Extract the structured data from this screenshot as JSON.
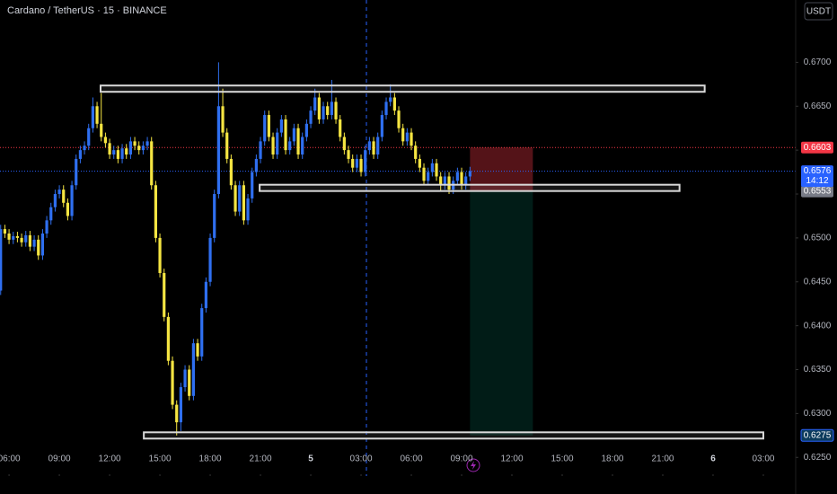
{
  "chart_data": {
    "type": "candlestick",
    "title": "Cardano / TetherUS · 15 · BINANCE",
    "currency": "USDT",
    "up_color": "#2f6ff0",
    "down_color": "#f5e542",
    "grid": false,
    "xlim": [
      5.46,
      52.93
    ],
    "ylim": [
      0.6239,
      0.6771
    ],
    "xticks": [
      {
        "value": 6,
        "label": "06:00"
      },
      {
        "value": 9,
        "label": "09:00"
      },
      {
        "value": 12,
        "label": "12:00"
      },
      {
        "value": 15,
        "label": "15:00"
      },
      {
        "value": 18,
        "label": "18:00"
      },
      {
        "value": 21,
        "label": "21:00"
      },
      {
        "value": 24,
        "label": "5"
      },
      {
        "value": 27,
        "label": "03:00"
      },
      {
        "value": 30,
        "label": "06:00"
      },
      {
        "value": 33,
        "label": "09:00"
      },
      {
        "value": 36,
        "label": "12:00"
      },
      {
        "value": 39,
        "label": "15:00"
      },
      {
        "value": 42,
        "label": "18:00"
      },
      {
        "value": 45,
        "label": "21:00"
      },
      {
        "value": 48,
        "label": "6"
      },
      {
        "value": 51,
        "label": "03:00"
      }
    ],
    "yticks": [
      {
        "value": 0.625,
        "label": "0.6250"
      },
      {
        "value": 0.63,
        "label": "0.6300"
      },
      {
        "value": 0.635,
        "label": "0.6350"
      },
      {
        "value": 0.64,
        "label": "0.6400"
      },
      {
        "value": 0.645,
        "label": "0.6450"
      },
      {
        "value": 0.65,
        "label": "0.6500"
      },
      {
        "value": 0.655,
        "label": "0.6550"
      },
      {
        "value": 0.66,
        "label": "0.6600"
      },
      {
        "value": 0.665,
        "label": "0.6650"
      },
      {
        "value": 0.67,
        "label": "0.6700"
      }
    ],
    "x": [
      5.5,
      5.75,
      6,
      6.25,
      6.5,
      6.75,
      7,
      7.25,
      7.5,
      7.75,
      8,
      8.25,
      8.5,
      8.75,
      9,
      9.25,
      9.5,
      9.75,
      10,
      10.25,
      10.5,
      10.75,
      11,
      11.25,
      11.5,
      11.75,
      12,
      12.25,
      12.5,
      12.75,
      13,
      13.25,
      13.5,
      13.75,
      14,
      14.25,
      14.5,
      14.75,
      15,
      15.25,
      15.5,
      15.75,
      16,
      16.25,
      16.5,
      16.75,
      17,
      17.25,
      17.5,
      17.75,
      18,
      18.25,
      18.5,
      18.75,
      19,
      19.25,
      19.5,
      19.75,
      20,
      20.25,
      20.5,
      20.75,
      21,
      21.25,
      21.5,
      21.75,
      22,
      22.25,
      22.5,
      22.75,
      23,
      23.25,
      23.5,
      23.75,
      24,
      24.25,
      24.5,
      24.75,
      25,
      25.25,
      25.5,
      25.75,
      26,
      26.25,
      26.5,
      26.75,
      27,
      27.25,
      27.5,
      27.75,
      28,
      28.25,
      28.5,
      28.75,
      29,
      29.25,
      29.5,
      29.75,
      30,
      30.25,
      30.5,
      30.75,
      31,
      31.25,
      31.5,
      31.75,
      32,
      32.25,
      32.5,
      32.75,
      33,
      33.25,
      33.5
    ],
    "open": [
      0.644,
      0.651,
      0.6505,
      0.6498,
      0.6502,
      0.65,
      0.6495,
      0.6503,
      0.649,
      0.6498,
      0.648,
      0.6505,
      0.652,
      0.6535,
      0.655,
      0.6555,
      0.654,
      0.6525,
      0.656,
      0.659,
      0.66,
      0.6605,
      0.6625,
      0.665,
      0.663,
      0.6615,
      0.6608,
      0.6595,
      0.66,
      0.659,
      0.6602,
      0.6595,
      0.661,
      0.6605,
      0.66,
      0.6605,
      0.661,
      0.656,
      0.65,
      0.646,
      0.641,
      0.636,
      0.631,
      0.629,
      0.633,
      0.635,
      0.632,
      0.638,
      0.6365,
      0.642,
      0.645,
      0.65,
      0.655,
      0.665,
      0.662,
      0.659,
      0.656,
      0.653,
      0.656,
      0.652,
      0.6545,
      0.6575,
      0.659,
      0.661,
      0.664,
      0.6615,
      0.6595,
      0.662,
      0.6635,
      0.66,
      0.661,
      0.6625,
      0.6595,
      0.6615,
      0.663,
      0.6645,
      0.666,
      0.6635,
      0.665,
      0.664,
      0.6655,
      0.6635,
      0.6615,
      0.66,
      0.659,
      0.658,
      0.659,
      0.6575,
      0.66,
      0.661,
      0.6595,
      0.6615,
      0.664,
      0.6655,
      0.666,
      0.6645,
      0.6625,
      0.661,
      0.662,
      0.6605,
      0.659,
      0.658,
      0.6565,
      0.6575,
      0.6585,
      0.657,
      0.656,
      0.657,
      0.6555,
      0.6565,
      0.6575,
      0.656,
      0.657
    ],
    "high": [
      0.6515,
      0.6515,
      0.651,
      0.6507,
      0.6507,
      0.6505,
      0.6508,
      0.6508,
      0.6503,
      0.6503,
      0.651,
      0.6525,
      0.654,
      0.6555,
      0.656,
      0.656,
      0.6545,
      0.6565,
      0.6595,
      0.6605,
      0.661,
      0.663,
      0.666,
      0.6655,
      0.6665,
      0.662,
      0.6613,
      0.6605,
      0.6605,
      0.6607,
      0.6607,
      0.6615,
      0.6615,
      0.661,
      0.661,
      0.6615,
      0.6615,
      0.6565,
      0.6505,
      0.6465,
      0.6415,
      0.6365,
      0.6315,
      0.6335,
      0.6355,
      0.6355,
      0.6385,
      0.6385,
      0.6425,
      0.6455,
      0.6505,
      0.6555,
      0.67,
      0.667,
      0.6625,
      0.6595,
      0.6565,
      0.6565,
      0.6565,
      0.655,
      0.658,
      0.6595,
      0.6615,
      0.6645,
      0.6645,
      0.662,
      0.6625,
      0.664,
      0.664,
      0.6615,
      0.663,
      0.663,
      0.662,
      0.6635,
      0.665,
      0.667,
      0.6665,
      0.6655,
      0.6655,
      0.668,
      0.666,
      0.664,
      0.662,
      0.6605,
      0.6595,
      0.6595,
      0.6595,
      0.6605,
      0.6615,
      0.6615,
      0.662,
      0.6645,
      0.666,
      0.6675,
      0.6665,
      0.665,
      0.663,
      0.6625,
      0.6625,
      0.661,
      0.6595,
      0.6585,
      0.658,
      0.659,
      0.659,
      0.6575,
      0.6575,
      0.6575,
      0.657,
      0.658,
      0.658,
      0.6575,
      0.6581
    ],
    "low": [
      0.6435,
      0.65,
      0.6493,
      0.6493,
      0.6495,
      0.649,
      0.649,
      0.6485,
      0.6485,
      0.6475,
      0.6475,
      0.65,
      0.6515,
      0.653,
      0.6545,
      0.6535,
      0.652,
      0.652,
      0.6555,
      0.6585,
      0.6595,
      0.66,
      0.662,
      0.6625,
      0.661,
      0.6603,
      0.659,
      0.659,
      0.6585,
      0.6585,
      0.659,
      0.659,
      0.66,
      0.6595,
      0.6595,
      0.66,
      0.6555,
      0.6495,
      0.6455,
      0.6405,
      0.6355,
      0.6305,
      0.6275,
      0.628,
      0.6325,
      0.6315,
      0.6315,
      0.636,
      0.636,
      0.6415,
      0.6445,
      0.6495,
      0.6545,
      0.6615,
      0.6585,
      0.6555,
      0.6525,
      0.6525,
      0.6515,
      0.6515,
      0.654,
      0.657,
      0.6585,
      0.6605,
      0.661,
      0.659,
      0.659,
      0.6615,
      0.6595,
      0.6595,
      0.6605,
      0.659,
      0.659,
      0.661,
      0.6625,
      0.664,
      0.663,
      0.663,
      0.6635,
      0.6635,
      0.663,
      0.661,
      0.6595,
      0.6585,
      0.6575,
      0.6575,
      0.657,
      0.657,
      0.6595,
      0.659,
      0.659,
      0.661,
      0.6635,
      0.665,
      0.664,
      0.662,
      0.6605,
      0.6605,
      0.66,
      0.6585,
      0.6575,
      0.656,
      0.656,
      0.657,
      0.6565,
      0.6553,
      0.6555,
      0.655,
      0.655,
      0.656,
      0.6555,
      0.6555,
      0.6565
    ],
    "close": [
      0.651,
      0.6505,
      0.6498,
      0.6502,
      0.65,
      0.6495,
      0.6503,
      0.649,
      0.6498,
      0.648,
      0.6505,
      0.652,
      0.6535,
      0.655,
      0.6555,
      0.654,
      0.6525,
      0.656,
      0.659,
      0.66,
      0.6605,
      0.6625,
      0.665,
      0.663,
      0.6615,
      0.6608,
      0.6595,
      0.66,
      0.659,
      0.6602,
      0.6595,
      0.661,
      0.6605,
      0.66,
      0.6605,
      0.661,
      0.656,
      0.65,
      0.646,
      0.641,
      0.636,
      0.631,
      0.629,
      0.633,
      0.635,
      0.632,
      0.638,
      0.6365,
      0.642,
      0.645,
      0.65,
      0.655,
      0.665,
      0.662,
      0.659,
      0.656,
      0.653,
      0.656,
      0.652,
      0.6545,
      0.6575,
      0.659,
      0.661,
      0.664,
      0.6615,
      0.6595,
      0.662,
      0.6635,
      0.66,
      0.661,
      0.6625,
      0.6595,
      0.6615,
      0.663,
      0.6645,
      0.666,
      0.6635,
      0.665,
      0.664,
      0.6655,
      0.6635,
      0.6615,
      0.66,
      0.659,
      0.658,
      0.659,
      0.6575,
      0.66,
      0.661,
      0.6595,
      0.6615,
      0.664,
      0.6655,
      0.666,
      0.6645,
      0.6625,
      0.661,
      0.662,
      0.6605,
      0.659,
      0.658,
      0.6565,
      0.6575,
      0.6585,
      0.657,
      0.656,
      0.657,
      0.6555,
      0.6565,
      0.6575,
      0.656,
      0.657,
      0.6576
    ],
    "levels": [
      {
        "value": 0.667,
        "from": 11.46,
        "to": 47.5
      },
      {
        "value": 0.6557,
        "from": 20.95,
        "to": 46.0
      },
      {
        "value": 0.6275,
        "from": 14.04,
        "to": 51.0
      }
    ],
    "position": {
      "entry": 0.6553,
      "stop": 0.6603,
      "target": 0.6275,
      "from": 33.5,
      "to": 37.25
    },
    "last_price": 0.6576,
    "countdown": "14:12",
    "cursor_x": 27.32
  }
}
